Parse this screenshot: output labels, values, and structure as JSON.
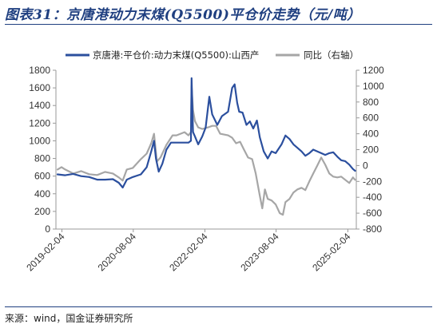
{
  "figure": {
    "title": "图表31：京唐港动力末煤(Q5500)平仓价走势（元/吨）",
    "source": "来源：wind，国金证券研究所"
  },
  "colors": {
    "price": "#2b4f9e",
    "yoy": "#a6a6a6",
    "axis": "#999999",
    "accent": "#1f3f80"
  },
  "chart_data": {
    "type": "line",
    "title": "图表31：京唐港动力末煤(Q5500)平仓价走势（元/吨）",
    "xlabel": "",
    "ylabel": "",
    "legend_position": "top",
    "grid": false,
    "x_ticks": [
      "2019-02-04",
      "2020-08-04",
      "2022-02-04",
      "2023-08-04",
      "2025-02-04"
    ],
    "y_left": {
      "min": 0,
      "max": 1800,
      "ticks": [
        0,
        200,
        400,
        600,
        800,
        1000,
        1200,
        1400,
        1600,
        1800
      ]
    },
    "y_right": {
      "min": -800,
      "max": 1200,
      "ticks": [
        -800,
        -600,
        -400,
        -200,
        0,
        200,
        400,
        600,
        800,
        1000,
        1200
      ]
    },
    "series": [
      {
        "name": "京唐港:平仓价:动力末煤(Q5500):山西产",
        "axis": "left",
        "points": [
          [
            "2019-01-01",
            620
          ],
          [
            "2019-03-01",
            610
          ],
          [
            "2019-05-01",
            625
          ],
          [
            "2019-07-01",
            600
          ],
          [
            "2019-09-01",
            590
          ],
          [
            "2019-11-01",
            560
          ],
          [
            "2020-01-01",
            560
          ],
          [
            "2020-03-01",
            565
          ],
          [
            "2020-04-15",
            525
          ],
          [
            "2020-05-15",
            470
          ],
          [
            "2020-06-15",
            560
          ],
          [
            "2020-08-01",
            590
          ],
          [
            "2020-10-01",
            620
          ],
          [
            "2020-11-15",
            700
          ],
          [
            "2020-12-20",
            880
          ],
          [
            "2021-01-10",
            1000
          ],
          [
            "2021-01-25",
            800
          ],
          [
            "2021-02-15",
            650
          ],
          [
            "2021-03-15",
            740
          ],
          [
            "2021-04-15",
            900
          ],
          [
            "2021-05-20",
            980
          ],
          [
            "2021-07-01",
            980
          ],
          [
            "2021-09-01",
            980
          ],
          [
            "2021-10-01",
            980
          ],
          [
            "2021-10-20",
            1000
          ],
          [
            "2021-10-25",
            1710
          ],
          [
            "2021-11-05",
            1100
          ],
          [
            "2021-11-20",
            1050
          ],
          [
            "2021-12-15",
            960
          ],
          [
            "2022-01-15",
            1050
          ],
          [
            "2022-02-10",
            1150
          ],
          [
            "2022-03-10",
            1500
          ],
          [
            "2022-04-01",
            1300
          ],
          [
            "2022-05-10",
            1180
          ],
          [
            "2022-06-15",
            1280
          ],
          [
            "2022-08-01",
            1330
          ],
          [
            "2022-09-01",
            1600
          ],
          [
            "2022-09-20",
            1640
          ],
          [
            "2022-10-10",
            1430
          ],
          [
            "2022-10-25",
            1330
          ],
          [
            "2022-11-20",
            1320
          ],
          [
            "2022-12-20",
            1180
          ],
          [
            "2023-01-15",
            1220
          ],
          [
            "2023-02-10",
            1140
          ],
          [
            "2023-03-10",
            1230
          ],
          [
            "2023-04-01",
            1040
          ],
          [
            "2023-05-01",
            880
          ],
          [
            "2023-06-01",
            800
          ],
          [
            "2023-07-01",
            880
          ],
          [
            "2023-08-01",
            860
          ],
          [
            "2023-09-15",
            960
          ],
          [
            "2023-10-15",
            1060
          ],
          [
            "2023-11-15",
            1020
          ],
          [
            "2023-12-15",
            960
          ],
          [
            "2024-01-15",
            920
          ],
          [
            "2024-02-15",
            880
          ],
          [
            "2024-03-15",
            830
          ],
          [
            "2024-04-15",
            860
          ],
          [
            "2024-05-15",
            900
          ],
          [
            "2024-06-15",
            880
          ],
          [
            "2024-07-15",
            860
          ],
          [
            "2024-08-15",
            840
          ],
          [
            "2024-09-15",
            860
          ],
          [
            "2024-10-15",
            870
          ],
          [
            "2024-11-15",
            820
          ],
          [
            "2024-12-15",
            780
          ],
          [
            "2025-01-15",
            770
          ],
          [
            "2025-02-15",
            730
          ],
          [
            "2025-03-15",
            680
          ],
          [
            "2025-04-01",
            660
          ]
        ]
      },
      {
        "name": "同比（右轴）",
        "axis": "right",
        "points": [
          [
            "2019-01-01",
            -50
          ],
          [
            "2019-02-01",
            -20
          ],
          [
            "2019-03-01",
            -50
          ],
          [
            "2019-05-01",
            -100
          ],
          [
            "2019-07-01",
            -70
          ],
          [
            "2019-09-01",
            -110
          ],
          [
            "2019-11-01",
            -120
          ],
          [
            "2020-01-01",
            -80
          ],
          [
            "2020-03-01",
            -100
          ],
          [
            "2020-04-15",
            -150
          ],
          [
            "2020-05-15",
            -190
          ],
          [
            "2020-06-15",
            -50
          ],
          [
            "2020-08-01",
            -30
          ],
          [
            "2020-10-01",
            80
          ],
          [
            "2020-11-15",
            150
          ],
          [
            "2020-12-20",
            280
          ],
          [
            "2021-01-10",
            400
          ],
          [
            "2021-02-01",
            50
          ],
          [
            "2021-03-01",
            100
          ],
          [
            "2021-04-15",
            260
          ],
          [
            "2021-06-01",
            380
          ],
          [
            "2021-07-01",
            380
          ],
          [
            "2021-09-01",
            420
          ],
          [
            "2021-10-01",
            380
          ],
          [
            "2021-10-20",
            420
          ],
          [
            "2021-10-25",
            1000
          ],
          [
            "2021-11-05",
            700
          ],
          [
            "2021-11-20",
            560
          ],
          [
            "2021-12-15",
            480
          ],
          [
            "2022-01-15",
            460
          ],
          [
            "2022-03-01",
            480
          ],
          [
            "2022-04-01",
            500
          ],
          [
            "2022-05-01",
            500
          ],
          [
            "2022-06-01",
            400
          ],
          [
            "2022-08-01",
            380
          ],
          [
            "2022-09-01",
            350
          ],
          [
            "2022-10-01",
            280
          ],
          [
            "2022-11-01",
            300
          ],
          [
            "2022-12-01",
            200
          ],
          [
            "2023-01-01",
            100
          ],
          [
            "2023-02-01",
            80
          ],
          [
            "2023-03-01",
            -100
          ],
          [
            "2023-04-01",
            -380
          ],
          [
            "2023-04-20",
            -540
          ],
          [
            "2023-05-10",
            -300
          ],
          [
            "2023-06-01",
            -420
          ],
          [
            "2023-07-01",
            -440
          ],
          [
            "2023-08-01",
            -490
          ],
          [
            "2023-09-01",
            -600
          ],
          [
            "2023-09-25",
            -620
          ],
          [
            "2023-10-15",
            -460
          ],
          [
            "2023-11-15",
            -420
          ],
          [
            "2023-12-15",
            -340
          ],
          [
            "2024-01-15",
            -300
          ],
          [
            "2024-02-15",
            -280
          ],
          [
            "2024-03-15",
            -310
          ],
          [
            "2024-04-15",
            -200
          ],
          [
            "2024-05-15",
            -100
          ],
          [
            "2024-06-15",
            0
          ],
          [
            "2024-07-15",
            100
          ],
          [
            "2024-08-15",
            10
          ],
          [
            "2024-09-15",
            -100
          ],
          [
            "2024-10-15",
            -140
          ],
          [
            "2024-11-15",
            -150
          ],
          [
            "2024-12-15",
            -140
          ],
          [
            "2025-01-15",
            -180
          ],
          [
            "2025-02-15",
            -220
          ],
          [
            "2025-03-15",
            -150
          ],
          [
            "2025-04-01",
            -180
          ]
        ]
      }
    ]
  }
}
